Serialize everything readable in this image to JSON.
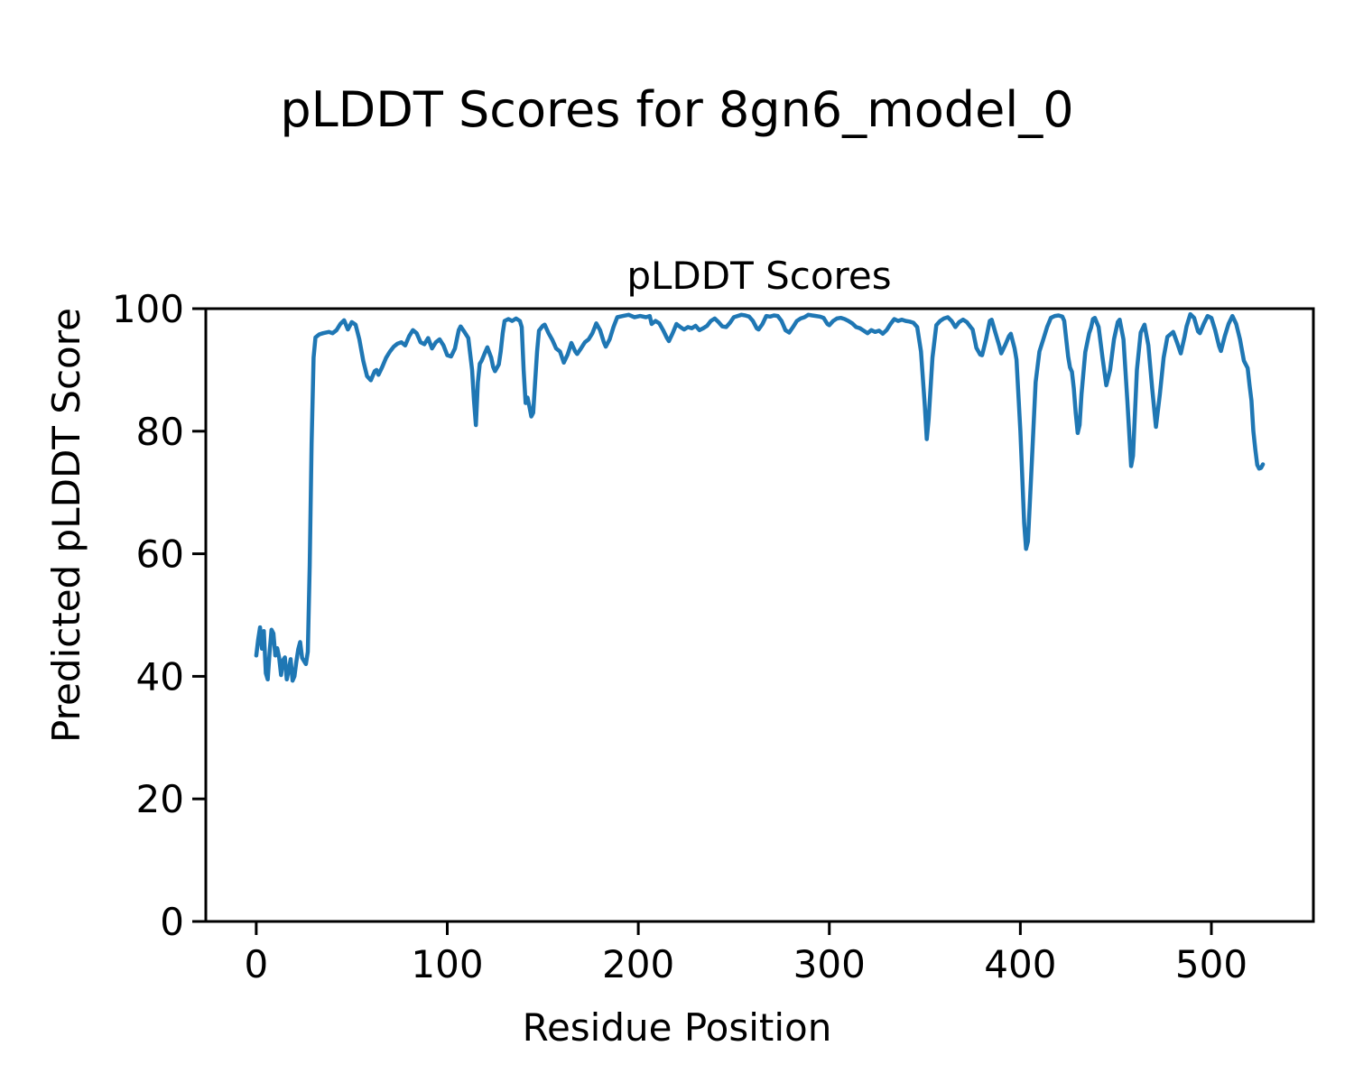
{
  "figure": {
    "suptitle": "pLDDT Scores for 8gn6_model_0"
  },
  "chart_data": {
    "type": "line",
    "title": "pLDDT Scores",
    "xlabel": "Residue Position",
    "ylabel": "Predicted pLDDT Score",
    "xlim": [
      -26.4,
      553.4
    ],
    "ylim": [
      0,
      100
    ],
    "x_ticks": [
      0,
      100,
      200,
      300,
      400,
      500
    ],
    "y_ticks": [
      0,
      20,
      40,
      60,
      80,
      100
    ],
    "grid": false,
    "legend_position": "none",
    "line_color": "#1f77b4",
    "axis_color": "#000000",
    "series": [
      {
        "name": "pLDDT",
        "points": [
          [
            0,
            43.4
          ],
          [
            1,
            46
          ],
          [
            2,
            48
          ],
          [
            3,
            44.5
          ],
          [
            4,
            47.4
          ],
          [
            5,
            40.5
          ],
          [
            6,
            39.5
          ],
          [
            7,
            44
          ],
          [
            8,
            47.6
          ],
          [
            9,
            47
          ],
          [
            10,
            43.4
          ],
          [
            11,
            44.6
          ],
          [
            12,
            43
          ],
          [
            13,
            40.2
          ],
          [
            14,
            42.6
          ],
          [
            15,
            43.1
          ],
          [
            16,
            39.5
          ],
          [
            17,
            41
          ],
          [
            18,
            42.8
          ],
          [
            19,
            39.3
          ],
          [
            20,
            40
          ],
          [
            21,
            42.4
          ],
          [
            22,
            44.4
          ],
          [
            23,
            45.6
          ],
          [
            24,
            43
          ],
          [
            25,
            42.5
          ],
          [
            26,
            42
          ],
          [
            27,
            44
          ],
          [
            28,
            58
          ],
          [
            29,
            78
          ],
          [
            30,
            92
          ],
          [
            31,
            95.3
          ],
          [
            33,
            95.8
          ],
          [
            35,
            96
          ],
          [
            38,
            96.2
          ],
          [
            40,
            96
          ],
          [
            42,
            96.5
          ],
          [
            44,
            97.5
          ],
          [
            46,
            98.1
          ],
          [
            48,
            96.6
          ],
          [
            50,
            97.8
          ],
          [
            52,
            97.4
          ],
          [
            54,
            95
          ],
          [
            56,
            91.5
          ],
          [
            58,
            89
          ],
          [
            60,
            88.3
          ],
          [
            62,
            89.8
          ],
          [
            63,
            90
          ],
          [
            64,
            89.2
          ],
          [
            66,
            90.5
          ],
          [
            68,
            92
          ],
          [
            70,
            93
          ],
          [
            72,
            93.8
          ],
          [
            74,
            94.3
          ],
          [
            76,
            94.5
          ],
          [
            78,
            94
          ],
          [
            80,
            95.5
          ],
          [
            82,
            96.5
          ],
          [
            84,
            96
          ],
          [
            86,
            94.5
          ],
          [
            88,
            94.2
          ],
          [
            90,
            95.2
          ],
          [
            92,
            93.5
          ],
          [
            94,
            94.5
          ],
          [
            96,
            95
          ],
          [
            98,
            94
          ],
          [
            100,
            92.4
          ],
          [
            102,
            92.2
          ],
          [
            104,
            93.5
          ],
          [
            106,
            96.5
          ],
          [
            107,
            97.1
          ],
          [
            109,
            96.2
          ],
          [
            111,
            95.2
          ],
          [
            113,
            90
          ],
          [
            114,
            85
          ],
          [
            115,
            81
          ],
          [
            116,
            88
          ],
          [
            117,
            91
          ],
          [
            118,
            91.5
          ],
          [
            120,
            93
          ],
          [
            121,
            93.7
          ],
          [
            123,
            92
          ],
          [
            124,
            90.5
          ],
          [
            125,
            89.8
          ],
          [
            127,
            90.9
          ],
          [
            128,
            93
          ],
          [
            129,
            96
          ],
          [
            130,
            98
          ],
          [
            132,
            98.3
          ],
          [
            134,
            98
          ],
          [
            136,
            98.4
          ],
          [
            138,
            98
          ],
          [
            139,
            97
          ],
          [
            140,
            90
          ],
          [
            141,
            84.6
          ],
          [
            142,
            85.5
          ],
          [
            143,
            84
          ],
          [
            144,
            82.4
          ],
          [
            145,
            83
          ],
          [
            146,
            88
          ],
          [
            147,
            93
          ],
          [
            148,
            96.4
          ],
          [
            150,
            97.2
          ],
          [
            151,
            97.4
          ],
          [
            153,
            96
          ],
          [
            155,
            94.9
          ],
          [
            157,
            93.5
          ],
          [
            159,
            93
          ],
          [
            161,
            91.2
          ],
          [
            163,
            92.5
          ],
          [
            165,
            94.4
          ],
          [
            167,
            93
          ],
          [
            168,
            92.6
          ],
          [
            170,
            93.5
          ],
          [
            172,
            94.5
          ],
          [
            174,
            95
          ],
          [
            176,
            96
          ],
          [
            178,
            97.6
          ],
          [
            180,
            96.5
          ],
          [
            182,
            94.5
          ],
          [
            183,
            93.8
          ],
          [
            185,
            95
          ],
          [
            187,
            97
          ],
          [
            189,
            98.6
          ],
          [
            192,
            98.8
          ],
          [
            195,
            99
          ],
          [
            198,
            98.6
          ],
          [
            201,
            98.8
          ],
          [
            204,
            98.6
          ],
          [
            206,
            98.8
          ],
          [
            207,
            97.5
          ],
          [
            209,
            98
          ],
          [
            211,
            97.6
          ],
          [
            213,
            96.5
          ],
          [
            215,
            95.2
          ],
          [
            216,
            94.7
          ],
          [
            218,
            96
          ],
          [
            220,
            97.5
          ],
          [
            222,
            97
          ],
          [
            224,
            96.6
          ],
          [
            226,
            97
          ],
          [
            228,
            96.8
          ],
          [
            230,
            97.2
          ],
          [
            232,
            96.5
          ],
          [
            234,
            96.8
          ],
          [
            236,
            97.2
          ],
          [
            238,
            98
          ],
          [
            240,
            98.4
          ],
          [
            242,
            97.8
          ],
          [
            244,
            97.1
          ],
          [
            246,
            97
          ],
          [
            248,
            97.7
          ],
          [
            250,
            98.6
          ],
          [
            252,
            98.8
          ],
          [
            254,
            99
          ],
          [
            256,
            98.9
          ],
          [
            258,
            98.7
          ],
          [
            260,
            98
          ],
          [
            262,
            96.8
          ],
          [
            263,
            96.6
          ],
          [
            265,
            97.5
          ],
          [
            267,
            98.8
          ],
          [
            269,
            98.7
          ],
          [
            271,
            98.9
          ],
          [
            273,
            98.8
          ],
          [
            275,
            98
          ],
          [
            277,
            96.5
          ],
          [
            279,
            96.1
          ],
          [
            281,
            97
          ],
          [
            283,
            98
          ],
          [
            285,
            98.4
          ],
          [
            287,
            98.6
          ],
          [
            289,
            99
          ],
          [
            291,
            98.9
          ],
          [
            293,
            98.8
          ],
          [
            295,
            98.7
          ],
          [
            297,
            98.5
          ],
          [
            299,
            97.5
          ],
          [
            300,
            97.3
          ],
          [
            302,
            98
          ],
          [
            304,
            98.4
          ],
          [
            306,
            98.5
          ],
          [
            308,
            98.3
          ],
          [
            310,
            98
          ],
          [
            312,
            97.6
          ],
          [
            314,
            97
          ],
          [
            316,
            96.8
          ],
          [
            318,
            96.4
          ],
          [
            320,
            96
          ],
          [
            322,
            96.5
          ],
          [
            324,
            96.2
          ],
          [
            326,
            96.4
          ],
          [
            328,
            95.9
          ],
          [
            330,
            96.5
          ],
          [
            332,
            97.5
          ],
          [
            334,
            98.3
          ],
          [
            336,
            98
          ],
          [
            338,
            98.2
          ],
          [
            340,
            98
          ],
          [
            342,
            97.9
          ],
          [
            344,
            97.7
          ],
          [
            346,
            97
          ],
          [
            348,
            93
          ],
          [
            350,
            84
          ],
          [
            351,
            78.7
          ],
          [
            352,
            82
          ],
          [
            354,
            92
          ],
          [
            356,
            97.3
          ],
          [
            358,
            98
          ],
          [
            360,
            98.4
          ],
          [
            362,
            98.6
          ],
          [
            364,
            98
          ],
          [
            366,
            97
          ],
          [
            368,
            97.8
          ],
          [
            370,
            98.2
          ],
          [
            372,
            97.8
          ],
          [
            374,
            97
          ],
          [
            375,
            96.6
          ],
          [
            377,
            93.6
          ],
          [
            379,
            92.5
          ],
          [
            380,
            92.4
          ],
          [
            382,
            95
          ],
          [
            384,
            98
          ],
          [
            385,
            98.2
          ],
          [
            387,
            96
          ],
          [
            389,
            93.9
          ],
          [
            390,
            92.7
          ],
          [
            392,
            94
          ],
          [
            394,
            95.5
          ],
          [
            395,
            95.9
          ],
          [
            397,
            93.5
          ],
          [
            398,
            91.7
          ],
          [
            400,
            80
          ],
          [
            402,
            65
          ],
          [
            403,
            60.8
          ],
          [
            404,
            62
          ],
          [
            406,
            75
          ],
          [
            408,
            88
          ],
          [
            410,
            93
          ],
          [
            412,
            95
          ],
          [
            414,
            97
          ],
          [
            416,
            98.5
          ],
          [
            418,
            98.8
          ],
          [
            420,
            98.9
          ],
          [
            422,
            98.7
          ],
          [
            423,
            98
          ],
          [
            425,
            92.2
          ],
          [
            426,
            90.4
          ],
          [
            427,
            89.7
          ],
          [
            428,
            87
          ],
          [
            429,
            83
          ],
          [
            430,
            79.7
          ],
          [
            431,
            81
          ],
          [
            432,
            86
          ],
          [
            434,
            92.9
          ],
          [
            436,
            96
          ],
          [
            437,
            96.9
          ],
          [
            438,
            98.3
          ],
          [
            439,
            98.5
          ],
          [
            441,
            97
          ],
          [
            443,
            92
          ],
          [
            445,
            87.5
          ],
          [
            447,
            90
          ],
          [
            449,
            95
          ],
          [
            451,
            97.8
          ],
          [
            452,
            98.2
          ],
          [
            454,
            95
          ],
          [
            456,
            85
          ],
          [
            458,
            74.3
          ],
          [
            459,
            76
          ],
          [
            461,
            90
          ],
          [
            463,
            96.1
          ],
          [
            465,
            97.4
          ],
          [
            467,
            94
          ],
          [
            469,
            87
          ],
          [
            471,
            80.7
          ],
          [
            473,
            86
          ],
          [
            475,
            92
          ],
          [
            477,
            95.4
          ],
          [
            480,
            96.2
          ],
          [
            482,
            94.5
          ],
          [
            484,
            92.7
          ],
          [
            486,
            95.5
          ],
          [
            487,
            97.1
          ],
          [
            489,
            99.1
          ],
          [
            491,
            98.5
          ],
          [
            493,
            96.3
          ],
          [
            494,
            96
          ],
          [
            496,
            97.5
          ],
          [
            498,
            98.8
          ],
          [
            500,
            98.5
          ],
          [
            502,
            96.5
          ],
          [
            504,
            93.9
          ],
          [
            505,
            93.1
          ],
          [
            507,
            95.5
          ],
          [
            509,
            97.5
          ],
          [
            511,
            98.8
          ],
          [
            513,
            97.5
          ],
          [
            515,
            95
          ],
          [
            517,
            91.5
          ],
          [
            519,
            90.3
          ],
          [
            520,
            87.5
          ],
          [
            521,
            85
          ],
          [
            522,
            80
          ],
          [
            523,
            77
          ],
          [
            524,
            74.5
          ],
          [
            525,
            73.9
          ],
          [
            526,
            74
          ],
          [
            527,
            74.6
          ]
        ]
      }
    ]
  }
}
